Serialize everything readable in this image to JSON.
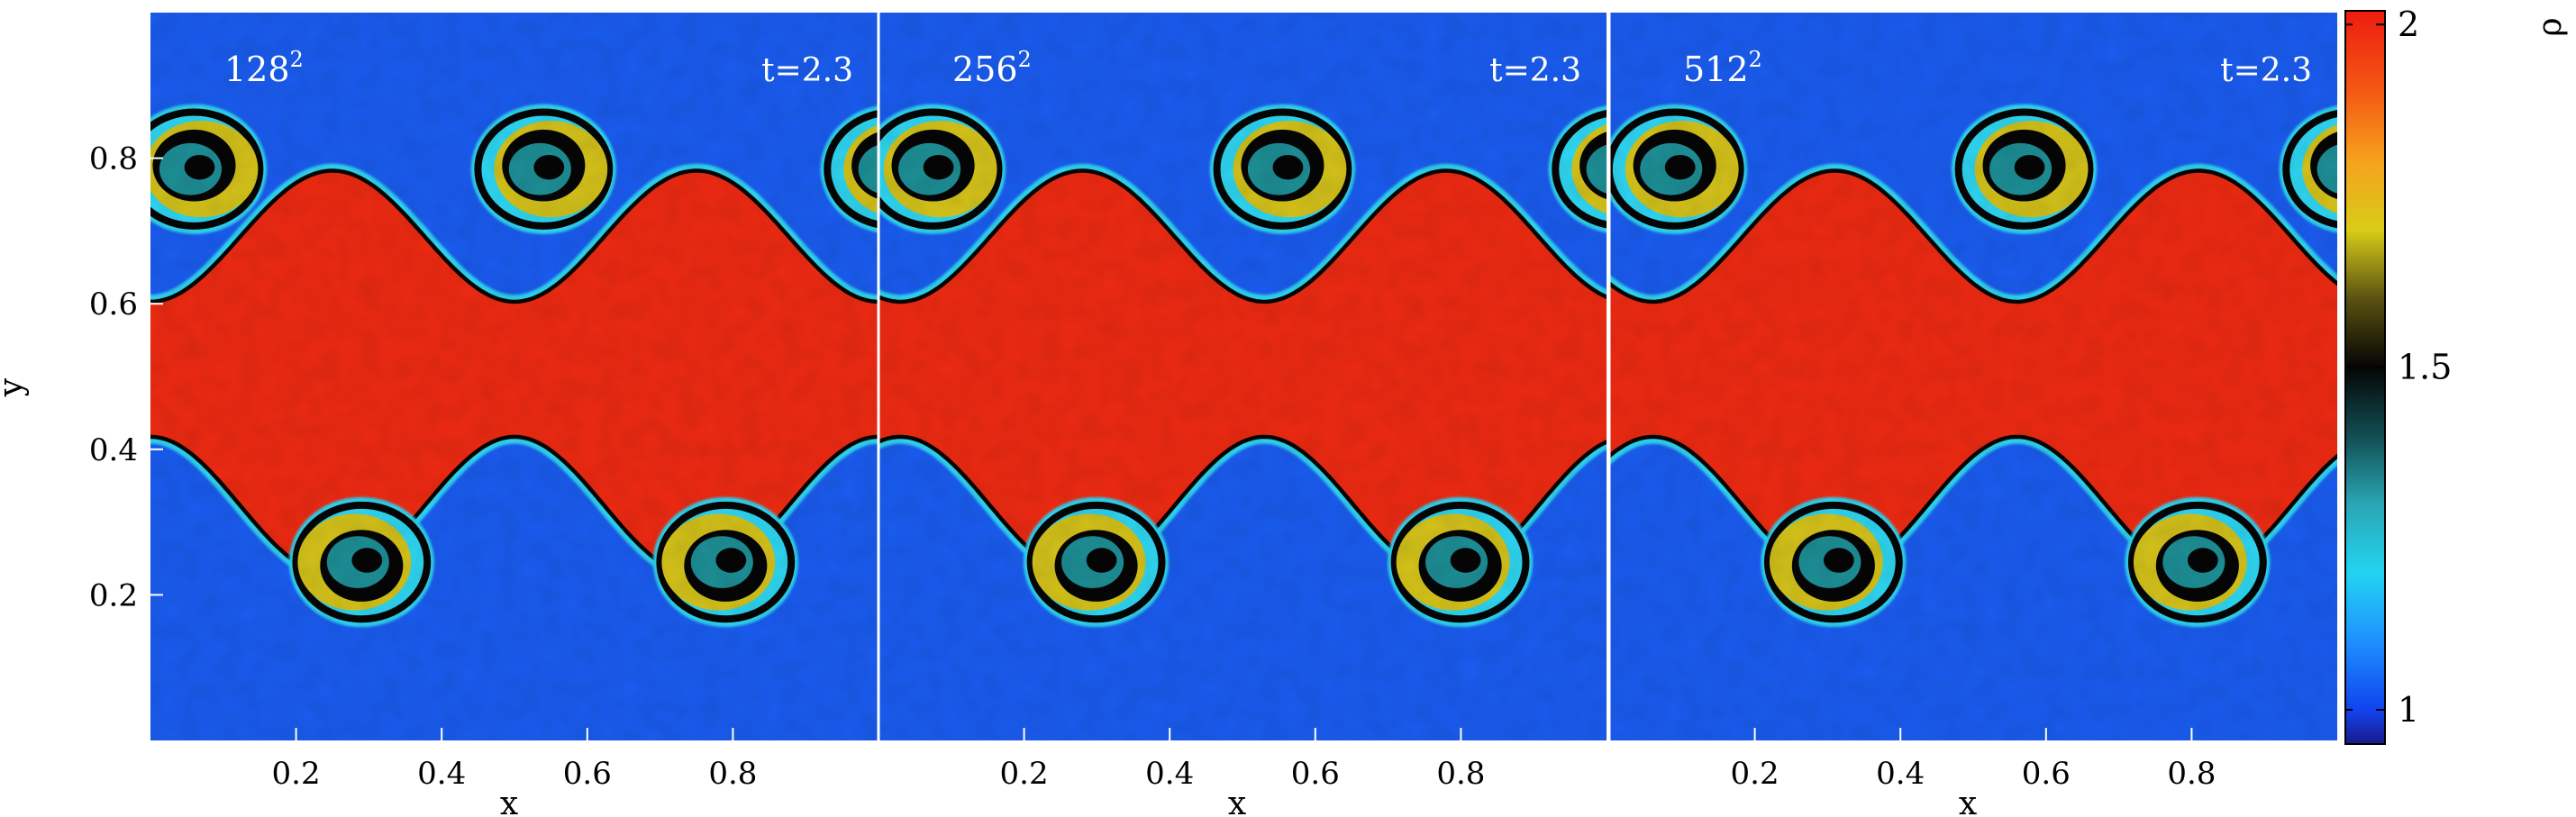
{
  "chart_data": {
    "type": "heatmap",
    "panels": [
      {
        "resolution_base": "128",
        "resolution_exp": "2",
        "time": "t=2.3"
      },
      {
        "resolution_base": "256",
        "resolution_exp": "2",
        "time": "t=2.3"
      },
      {
        "resolution_base": "512",
        "resolution_exp": "2",
        "time": "t=2.3"
      }
    ],
    "xlabel": "x",
    "ylabel": "y",
    "xlim": [
      0,
      1
    ],
    "ylim": [
      0,
      1
    ],
    "x_ticks": [
      0.2,
      0.4,
      0.6,
      0.8
    ],
    "x_tick_labels": [
      "0.2",
      "0.4",
      "0.6",
      "0.8"
    ],
    "y_ticks": [
      0.2,
      0.4,
      0.6,
      0.8
    ],
    "y_tick_labels": [
      "0.2",
      "0.4",
      "0.6",
      "0.8"
    ],
    "colorbar": {
      "label": "ρ",
      "range": [
        0.95,
        2.02
      ],
      "ticks": [
        1,
        1.5,
        2
      ],
      "tick_labels": [
        "1",
        "1.5",
        "2"
      ],
      "colormap": [
        {
          "v": 0.95,
          "color": "#1a1a8c"
        },
        {
          "v": 1.0,
          "color": "#1144ee"
        },
        {
          "v": 1.1,
          "color": "#1e90ff"
        },
        {
          "v": 1.2,
          "color": "#22d4f0"
        },
        {
          "v": 1.3,
          "color": "#2aa6b4"
        },
        {
          "v": 1.4,
          "color": "#124d52"
        },
        {
          "v": 1.5,
          "color": "#050505"
        },
        {
          "v": 1.6,
          "color": "#5a5210"
        },
        {
          "v": 1.7,
          "color": "#d8cc18"
        },
        {
          "v": 1.8,
          "color": "#f6a21e"
        },
        {
          "v": 1.9,
          "color": "#f45a14"
        },
        {
          "v": 2.02,
          "color": "#ee1c10"
        }
      ]
    },
    "colors": {
      "background_blue": "#1a5cf0",
      "band_red": "#ee2a12",
      "rim_cyan": "#2fd6f2",
      "core_teal": "#1d8f96",
      "interface_black": "#050505",
      "arm_yellow": "#d4c21a",
      "panel_divider": "#ffffff"
    }
  }
}
